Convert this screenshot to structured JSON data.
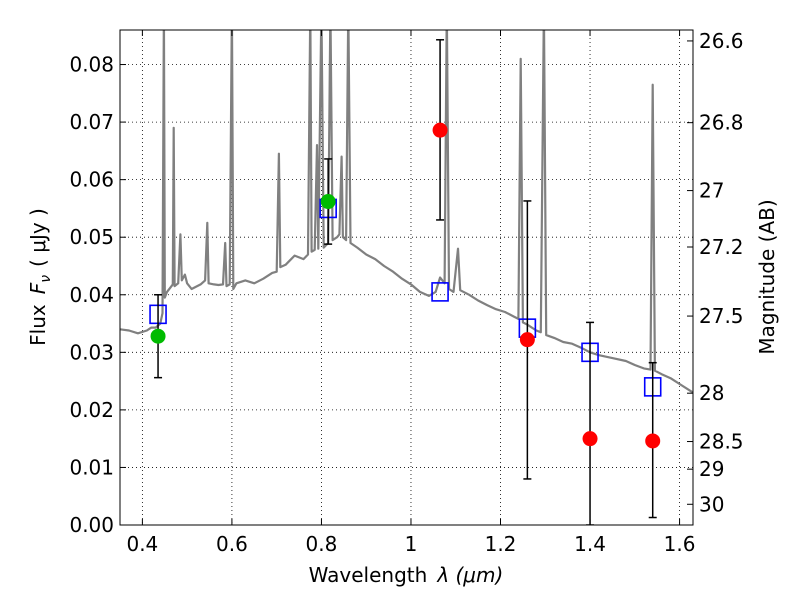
{
  "chart_data": {
    "type": "scatter",
    "xlabel_text": "Wavelength",
    "xlabel_math": "λ (μm)",
    "ylabel_text": "Flux",
    "ylabel_math": "F",
    "ylabel_sub": "ν",
    "ylabel_unit": "( μJy )",
    "y2label": "Magnitude (AB)",
    "xlim": [
      0.35,
      1.63
    ],
    "ylim": [
      0.0,
      0.086
    ],
    "grid": true,
    "grid_style": "dotted",
    "xticks": [
      {
        "value": 0.4,
        "label": "0.4"
      },
      {
        "value": 0.6,
        "label": "0.6"
      },
      {
        "value": 0.8,
        "label": "0.8"
      },
      {
        "value": 1.0,
        "label": "1"
      },
      {
        "value": 1.2,
        "label": "1.2"
      },
      {
        "value": 1.4,
        "label": "1.4"
      },
      {
        "value": 1.6,
        "label": "1.6"
      }
    ],
    "yticks": [
      {
        "value": 0.0,
        "label": "0.00"
      },
      {
        "value": 0.01,
        "label": "0.01"
      },
      {
        "value": 0.02,
        "label": "0.02"
      },
      {
        "value": 0.03,
        "label": "0.03"
      },
      {
        "value": 0.04,
        "label": "0.04"
      },
      {
        "value": 0.05,
        "label": "0.05"
      },
      {
        "value": 0.06,
        "label": "0.06"
      },
      {
        "value": 0.07,
        "label": "0.07"
      },
      {
        "value": 0.08,
        "label": "0.08"
      }
    ],
    "y2ticks": [
      {
        "flux": 0.0841,
        "label": "26.6"
      },
      {
        "flux": 0.0699,
        "label": "26.8"
      },
      {
        "flux": 0.0581,
        "label": "27"
      },
      {
        "flux": 0.0483,
        "label": "27.2"
      },
      {
        "flux": 0.0363,
        "label": "27.5"
      },
      {
        "flux": 0.0229,
        "label": "28"
      },
      {
        "flux": 0.0145,
        "label": "28.5"
      },
      {
        "flux": 0.0097,
        "label": "29"
      },
      {
        "flux": 0.0036,
        "label": "30"
      }
    ],
    "colors": {
      "model": "#808080",
      "square": "#0000ff",
      "green": "#00bb00",
      "red": "#ff0000",
      "errorbar": "#000000"
    },
    "model_spectrum": [
      [
        0.35,
        0.034
      ],
      [
        0.37,
        0.0338
      ],
      [
        0.39,
        0.0333
      ],
      [
        0.41,
        0.0338
      ],
      [
        0.42,
        0.0343
      ],
      [
        0.43,
        0.0343
      ],
      [
        0.44,
        0.035
      ],
      [
        0.445,
        0.0368
      ],
      [
        0.448,
        0.09
      ],
      [
        0.45,
        0.0395
      ],
      [
        0.455,
        0.0405
      ],
      [
        0.462,
        0.0412
      ],
      [
        0.468,
        0.0418
      ],
      [
        0.47,
        0.069
      ],
      [
        0.472,
        0.0415
      ],
      [
        0.48,
        0.042
      ],
      [
        0.485,
        0.0505
      ],
      [
        0.488,
        0.0425
      ],
      [
        0.495,
        0.0435
      ],
      [
        0.5,
        0.042
      ],
      [
        0.51,
        0.041
      ],
      [
        0.53,
        0.0418
      ],
      [
        0.54,
        0.0425
      ],
      [
        0.545,
        0.0525
      ],
      [
        0.548,
        0.042
      ],
      [
        0.56,
        0.0418
      ],
      [
        0.57,
        0.0417
      ],
      [
        0.58,
        0.0418
      ],
      [
        0.585,
        0.049
      ],
      [
        0.588,
        0.0415
      ],
      [
        0.595,
        0.0418
      ],
      [
        0.6,
        0.09
      ],
      [
        0.603,
        0.041
      ],
      [
        0.61,
        0.042
      ],
      [
        0.63,
        0.0425
      ],
      [
        0.65,
        0.042
      ],
      [
        0.67,
        0.0428
      ],
      [
        0.69,
        0.0438
      ],
      [
        0.7,
        0.044
      ],
      [
        0.705,
        0.0645
      ],
      [
        0.708,
        0.0448
      ],
      [
        0.72,
        0.0452
      ],
      [
        0.73,
        0.046
      ],
      [
        0.74,
        0.0468
      ],
      [
        0.75,
        0.0465
      ],
      [
        0.76,
        0.0462
      ],
      [
        0.77,
        0.047
      ],
      [
        0.775,
        0.09
      ],
      [
        0.778,
        0.0475
      ],
      [
        0.785,
        0.0478
      ],
      [
        0.79,
        0.066
      ],
      [
        0.793,
        0.048
      ],
      [
        0.8,
        0.09
      ],
      [
        0.805,
        0.0482
      ],
      [
        0.815,
        0.049
      ],
      [
        0.82,
        0.09
      ],
      [
        0.825,
        0.0495
      ],
      [
        0.835,
        0.05
      ],
      [
        0.84,
        0.0505
      ],
      [
        0.845,
        0.064
      ],
      [
        0.848,
        0.05
      ],
      [
        0.855,
        0.0495
      ],
      [
        0.86,
        0.09
      ],
      [
        0.865,
        0.049
      ],
      [
        0.88,
        0.0482
      ],
      [
        0.9,
        0.047
      ],
      [
        0.92,
        0.0462
      ],
      [
        0.94,
        0.045
      ],
      [
        0.96,
        0.044
      ],
      [
        0.98,
        0.0428
      ],
      [
        1.0,
        0.0418
      ],
      [
        1.02,
        0.0405
      ],
      [
        1.04,
        0.0398
      ],
      [
        1.055,
        0.0405
      ],
      [
        1.065,
        0.043
      ],
      [
        1.075,
        0.042
      ],
      [
        1.08,
        0.09
      ],
      [
        1.085,
        0.041
      ],
      [
        1.095,
        0.0405
      ],
      [
        1.105,
        0.048
      ],
      [
        1.11,
        0.0408
      ],
      [
        1.13,
        0.04
      ],
      [
        1.15,
        0.039
      ],
      [
        1.17,
        0.0382
      ],
      [
        1.19,
        0.0375
      ],
      [
        1.21,
        0.037
      ],
      [
        1.23,
        0.0362
      ],
      [
        1.24,
        0.0358
      ],
      [
        1.245,
        0.081
      ],
      [
        1.25,
        0.0352
      ],
      [
        1.26,
        0.0348
      ],
      [
        1.28,
        0.0338
      ],
      [
        1.29,
        0.0335
      ],
      [
        1.297,
        0.09
      ],
      [
        1.302,
        0.033
      ],
      [
        1.32,
        0.0325
      ],
      [
        1.34,
        0.0318
      ],
      [
        1.36,
        0.0315
      ],
      [
        1.38,
        0.0308
      ],
      [
        1.4,
        0.03
      ],
      [
        1.42,
        0.0295
      ],
      [
        1.45,
        0.029
      ],
      [
        1.48,
        0.0285
      ],
      [
        1.5,
        0.0278
      ],
      [
        1.52,
        0.0272
      ],
      [
        1.535,
        0.027
      ],
      [
        1.54,
        0.0765
      ],
      [
        1.545,
        0.0268
      ],
      [
        1.56,
        0.0262
      ],
      [
        1.58,
        0.0255
      ],
      [
        1.6,
        0.0245
      ],
      [
        1.62,
        0.0235
      ],
      [
        1.63,
        0.023
      ]
    ],
    "model_photometry": [
      {
        "x": 0.435,
        "y": 0.0366
      },
      {
        "x": 0.815,
        "y": 0.055
      },
      {
        "x": 1.065,
        "y": 0.0405
      },
      {
        "x": 1.26,
        "y": 0.0342
      },
      {
        "x": 1.4,
        "y": 0.03
      },
      {
        "x": 1.54,
        "y": 0.024
      }
    ],
    "observed": [
      {
        "x": 0.435,
        "y": 0.0328,
        "yerr_low": 0.0256,
        "yerr_high": 0.04,
        "color": "green"
      },
      {
        "x": 0.815,
        "y": 0.0562,
        "yerr_low": 0.0488,
        "yerr_high": 0.0636,
        "color": "green"
      },
      {
        "x": 1.065,
        "y": 0.0686,
        "yerr_low": 0.053,
        "yerr_high": 0.0843,
        "color": "red"
      },
      {
        "x": 1.26,
        "y": 0.0322,
        "yerr_low": 0.008,
        "yerr_high": 0.0563,
        "color": "red"
      },
      {
        "x": 1.4,
        "y": 0.015,
        "yerr_low": 0.0,
        "yerr_high": 0.0352,
        "color": "red"
      },
      {
        "x": 1.54,
        "y": 0.0146,
        "yerr_low": 0.0013,
        "yerr_high": 0.0282,
        "color": "red"
      }
    ]
  }
}
